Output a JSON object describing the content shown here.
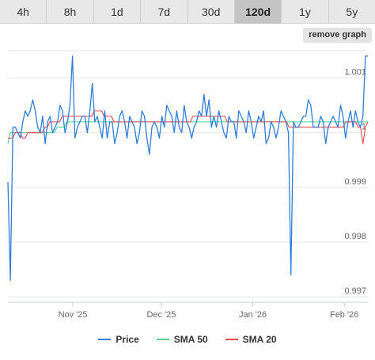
{
  "tabs": [
    {
      "label": "4h"
    },
    {
      "label": "8h"
    },
    {
      "label": "1d"
    },
    {
      "label": "7d"
    },
    {
      "label": "30d"
    },
    {
      "label": "120d",
      "active": true
    },
    {
      "label": "1y"
    },
    {
      "label": "5y"
    }
  ],
  "remove_label": "remove graph",
  "chart_data": {
    "type": "line",
    "title": "",
    "xlabel": "",
    "ylabel": "",
    "x_range": [
      "2025-10-10",
      "2026-02-09"
    ],
    "x_ticks": [
      {
        "date": "2025-11-01",
        "label": "Nov '25"
      },
      {
        "date": "2025-12-01",
        "label": "Dec '25"
      },
      {
        "date": "2026-01-01",
        "label": "Jan '26"
      },
      {
        "date": "2026-02-01",
        "label": "Feb '26"
      }
    ],
    "ylim": [
      0.9969,
      1.0015
    ],
    "y_ticks": [
      0.997,
      0.998,
      0.999,
      1.0,
      1.001
    ],
    "y_tick_labels": [
      "0.997",
      "0.998",
      "0.999",
      "1",
      "1.001"
    ],
    "grid": true,
    "legend_position": "bottom",
    "series": [
      {
        "name": "Price",
        "color": "#2f7ed8",
        "values": [
          0.9991,
          0.9973,
          1.0001,
          1.0001,
          1.0,
          0.9999,
          1.0002,
          1.0004,
          1.0003,
          1.0004,
          1.0006,
          1.0004,
          1.0001,
          1.0,
          1.0003,
          0.9998,
          1.0002,
          1.0003,
          1.0,
          1.0001,
          1.0002,
          1.0005,
          1.0004,
          1.0,
          1.0002,
          1.0005,
          1.0014,
          0.9999,
          1.0001,
          1.0002,
          1.0003,
          1.0003,
          1.0,
          1.0004,
          1.0009,
          1.0002,
          1.0003,
          1.0001,
          0.9999,
          1.0004,
          0.9999,
          1.0002,
          1.0002,
          0.9998,
          1.0,
          1.0003,
          1.0004,
          1.0002,
          0.9999,
          1.0003,
          1.0002,
          1.0001,
          0.9998,
          1.0,
          1.0004,
          1.0003,
          0.9999,
          0.9996,
          1.0001,
          1.0002,
          1.0001,
          0.9999,
          1.0003,
          1.0001,
          1.0005,
          1.0004,
          1.0003,
          1.0,
          1.0004,
          1.0001,
          1.0,
          1.0005,
          1.0002,
          1.0001,
          0.9999,
          1.0001,
          1.0002,
          1.0004,
          1.0003,
          1.0007,
          1.0003,
          1.0006,
          1.0001,
          1.0003,
          1.0001,
          1.0004,
          1.0002,
          1.0,
          0.9999,
          1.0003,
          1.0002,
          1.0002,
          0.9999,
          1.0004,
          1.0003,
          1.0002,
          1.0,
          1.0004,
          1.0002,
          0.9999,
          1.0001,
          1.0003,
          1.0002,
          1.0004,
          0.9998,
          0.9999,
          1.0002,
          1.0001,
          0.9999,
          1.0001,
          1.0004,
          1.0003,
          1.0002,
          1.0,
          0.9974,
          1.0002,
          1.0001,
          1.0001,
          1.0002,
          1.0003,
          1.0003,
          1.0006,
          1.0005,
          1.0001,
          1.0001,
          1.0001,
          1.0003,
          1.0002,
          0.9998,
          1.0001,
          1.0002,
          1.0003,
          1.0002,
          1.0001,
          1.0005,
          1.0003,
          0.9999,
          1.0002,
          1.0004,
          1.0001,
          1.0004,
          1.0002,
          1.0001,
          1.0003,
          1.0014,
          1.0014
        ]
      },
      {
        "name": "SMA 50",
        "color": "#4cd98a",
        "values": [
          0.9998,
          1.0,
          1.0,
          1.0,
          1.0,
          1.0,
          1.0,
          1.0,
          1.0,
          1.0,
          1.0,
          1.0,
          1.0,
          1.0,
          1.0,
          1.0,
          1.0,
          1.0,
          1.0,
          1.0,
          1.0001,
          1.0001,
          1.0001,
          1.0001,
          1.0002,
          1.0002,
          1.0002,
          1.0002,
          1.0002,
          1.0002,
          1.0002,
          1.0002,
          1.0002,
          1.0002,
          1.0002,
          1.0002,
          1.0002,
          1.0002,
          1.0002,
          1.0002,
          1.0002,
          1.0002,
          1.0002,
          1.0002,
          1.0002,
          1.0002,
          1.0002,
          1.0002,
          1.0002,
          1.0002,
          1.0002,
          1.0002,
          1.0002,
          1.0002,
          1.0002,
          1.0002,
          1.0002,
          1.0002,
          1.0002,
          1.0002,
          1.0002,
          1.0002,
          1.0002,
          1.0002,
          1.0002,
          1.0002,
          1.0002,
          1.0002,
          1.0002,
          1.0002,
          1.0002,
          1.0002,
          1.0002,
          1.0002,
          1.0002,
          1.0002,
          1.0002,
          1.0002,
          1.0002,
          1.0002,
          1.0002,
          1.0002,
          1.0002,
          1.0002,
          1.0002,
          1.0002,
          1.0002,
          1.0002,
          1.0002,
          1.0002,
          1.0002,
          1.0002,
          1.0002,
          1.0002,
          1.0002,
          1.0002,
          1.0002,
          1.0002,
          1.0002,
          1.0002,
          1.0002,
          1.0002,
          1.0002,
          1.0002,
          1.0002,
          1.0002,
          1.0002,
          1.0002,
          1.0002,
          1.0002,
          1.0002,
          1.0002,
          1.0002,
          1.0002,
          1.0002,
          1.0002,
          1.0002,
          1.0002,
          1.0002,
          1.0002,
          1.0002,
          1.0002,
          1.0002,
          1.0002,
          1.0002,
          1.0002,
          1.0002,
          1.0002,
          1.0002,
          1.0002,
          1.0002,
          1.0002,
          1.0002,
          1.0002,
          1.0002,
          1.0002,
          1.0002,
          1.0002,
          1.0002,
          1.0002,
          1.0002,
          1.0002,
          1.0002,
          1.0002,
          1.0002,
          1.0002,
          1.0002,
          1.0002
        ]
      },
      {
        "name": "SMA 20",
        "color": "#e8484f",
        "values": [
          0.9999,
          0.9999,
          0.9999,
          1.0,
          1.0,
          1.0,
          0.9999,
          0.9999,
          1.0,
          1.0,
          1.0,
          1.0,
          1.0,
          1.0,
          1.0,
          1.0001,
          1.0001,
          1.0002,
          1.0002,
          1.0002,
          1.0002,
          1.0002,
          1.0003,
          1.0003,
          1.0003,
          1.0003,
          1.0003,
          1.0003,
          1.0003,
          1.0003,
          1.0003,
          1.0003,
          1.0003,
          1.0003,
          1.0003,
          1.0004,
          1.0004,
          1.0004,
          1.0004,
          1.0003,
          1.0003,
          1.0003,
          1.0003,
          1.0002,
          1.0002,
          1.0002,
          1.0002,
          1.0002,
          1.0002,
          1.0002,
          1.0002,
          1.0002,
          1.0002,
          1.0002,
          1.0002,
          1.0002,
          1.0002,
          1.0002,
          1.0002,
          1.0002,
          1.0002,
          1.0002,
          1.0002,
          1.0002,
          1.0002,
          1.0002,
          1.0002,
          1.0002,
          1.0002,
          1.0002,
          1.0002,
          1.0002,
          1.0002,
          1.0002,
          1.0002,
          1.0003,
          1.0003,
          1.0003,
          1.0003,
          1.0003,
          1.0003,
          1.0003,
          1.0003,
          1.0003,
          1.0003,
          1.0003,
          1.0003,
          1.0003,
          1.0003,
          1.0002,
          1.0002,
          1.0002,
          1.0002,
          1.0002,
          1.0002,
          1.0002,
          1.0002,
          1.0002,
          1.0002,
          1.0002,
          1.0002,
          1.0002,
          1.0002,
          1.0002,
          1.0002,
          1.0002,
          1.0002,
          1.0002,
          1.0002,
          1.0002,
          1.0002,
          1.0002,
          1.0002,
          1.0002,
          1.0001,
          1.0001,
          1.0001,
          1.0001,
          1.0001,
          1.0001,
          1.0001,
          1.0001,
          1.0001,
          1.0001,
          1.0001,
          1.0001,
          1.0001,
          1.0001,
          1.0001,
          1.0001,
          1.0001,
          1.0001,
          1.0001,
          1.0001,
          1.0001,
          1.0001,
          1.0001,
          1.0002,
          1.0002,
          1.0002,
          1.0002,
          1.0002,
          1.0001,
          1.0001,
          0.9998,
          1.0001,
          1.0002
        ]
      }
    ]
  }
}
